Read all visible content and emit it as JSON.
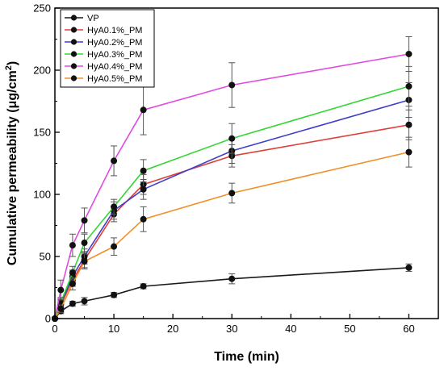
{
  "chart_data": {
    "type": "line",
    "title": "",
    "xlabel": "Time (min)",
    "ylabel_main": "Cumulative permeability (μg/cm",
    "ylabel_sup": "2",
    "ylabel_close": ")",
    "xlim": [
      0,
      65
    ],
    "ylim": [
      0,
      250
    ],
    "xticks": [
      0,
      10,
      20,
      30,
      40,
      50,
      60
    ],
    "yticks": [
      0,
      50,
      100,
      150,
      200,
      250
    ],
    "legend_position": "top-left",
    "grid": false,
    "x": [
      0,
      1,
      3,
      5,
      10,
      15,
      30,
      60
    ],
    "series": [
      {
        "name": "VP",
        "color": "#1a1a1a",
        "values": [
          0,
          6,
          12,
          14,
          19,
          26,
          32,
          41
        ],
        "errors": [
          0,
          2,
          2,
          3,
          2,
          2,
          4,
          3
        ]
      },
      {
        "name": "HyA0.1%_PM",
        "color": "#e0403a",
        "values": [
          0,
          11,
          31,
          47,
          84,
          108,
          131,
          156
        ],
        "errors": [
          0,
          4,
          5,
          6,
          6,
          8,
          9,
          12
        ]
      },
      {
        "name": "HyA0.2%_PM",
        "color": "#3f3fc8",
        "values": [
          0,
          12,
          34,
          50,
          87,
          104,
          135,
          176
        ],
        "errors": [
          0,
          4,
          5,
          6,
          7,
          8,
          10,
          14
        ]
      },
      {
        "name": "HyA0.3%_PM",
        "color": "#33d633",
        "values": [
          0,
          13,
          37,
          61,
          90,
          119,
          145,
          187
        ],
        "errors": [
          0,
          4,
          5,
          7,
          6,
          9,
          12,
          16
        ]
      },
      {
        "name": "HyA0.4%_PM",
        "color": "#e04ae0",
        "values": [
          0,
          23,
          59,
          79,
          127,
          168,
          188,
          213
        ],
        "errors": [
          0,
          8,
          9,
          10,
          12,
          20,
          18,
          14
        ]
      },
      {
        "name": "HyA0.5%_PM",
        "color": "#f0902a",
        "values": [
          0,
          8,
          28,
          46,
          58,
          80,
          101,
          134
        ],
        "errors": [
          0,
          3,
          5,
          6,
          7,
          10,
          8,
          12
        ]
      }
    ]
  }
}
